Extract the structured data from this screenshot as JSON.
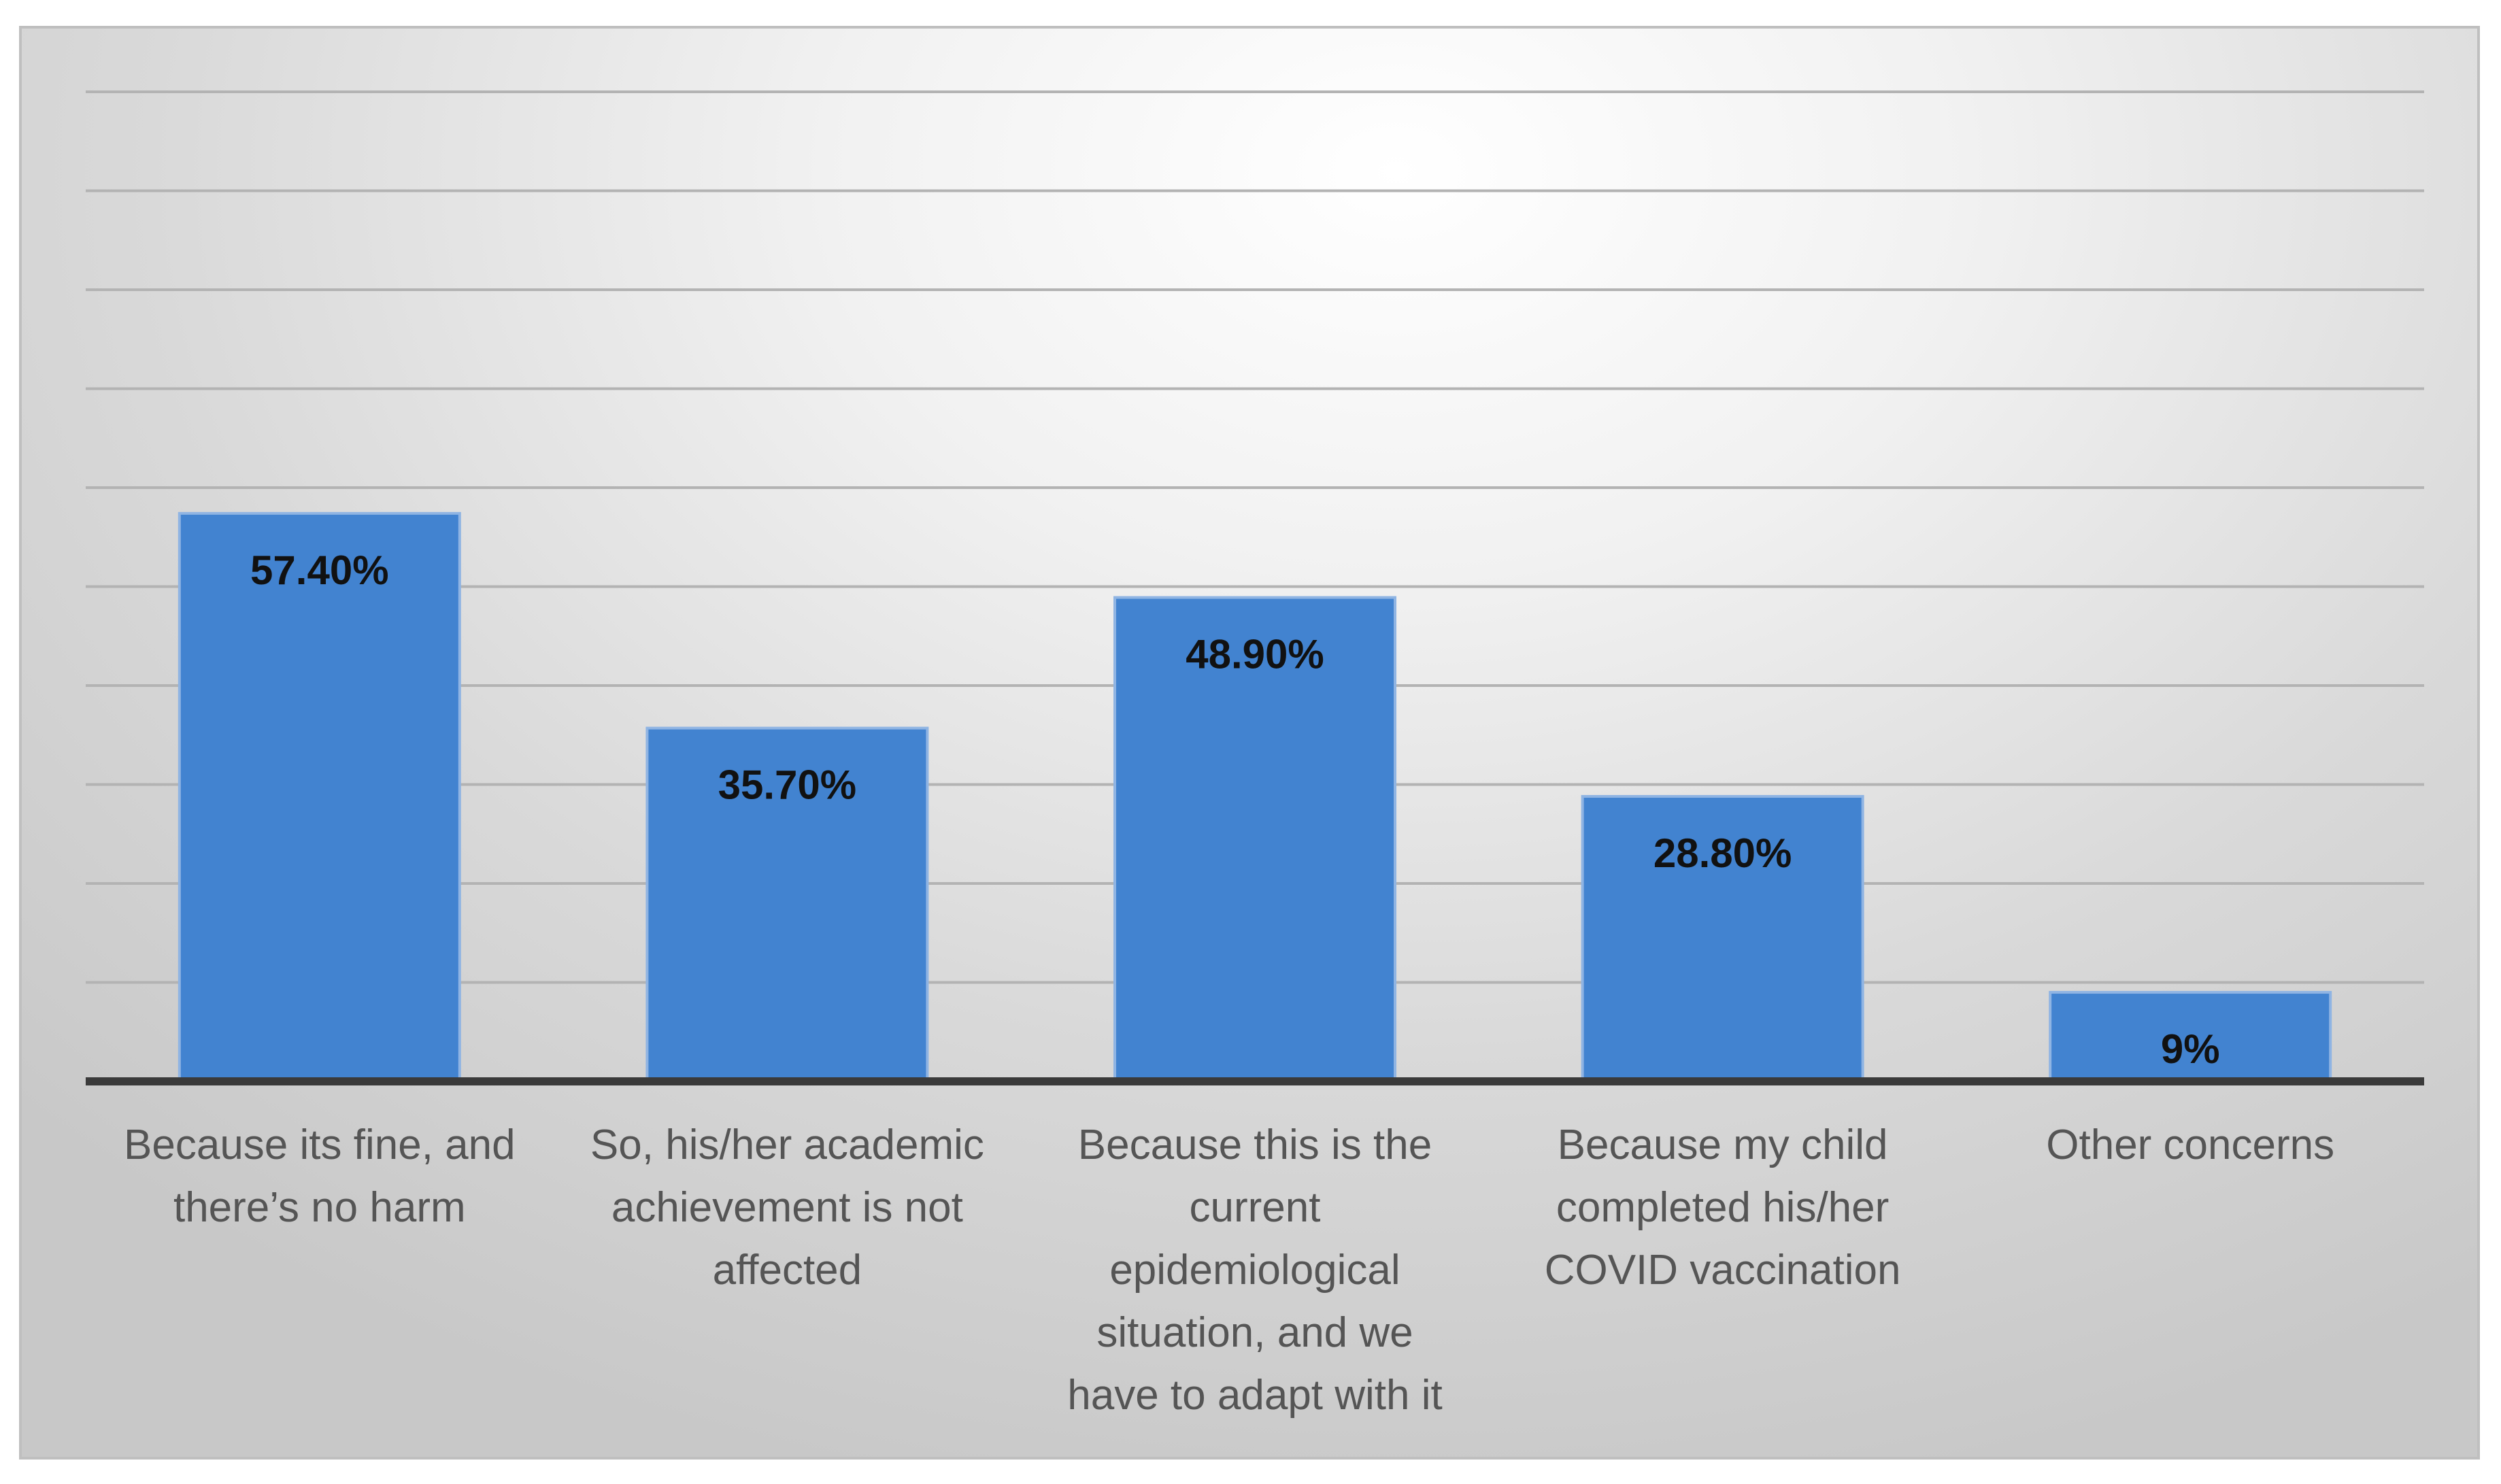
{
  "chart_data": {
    "type": "bar",
    "categories": [
      [
        "Because its fine, and",
        "there’s no harm"
      ],
      [
        "So, his/her academic",
        "achievement is not",
        "affected"
      ],
      [
        "Because this is the",
        "current",
        "epidemiological",
        "situation, and we",
        "have to adapt with it"
      ],
      [
        "Because my child",
        "completed his/her",
        "COVID vaccination"
      ],
      [
        "Other concerns"
      ]
    ],
    "values": [
      57.4,
      35.7,
      48.9,
      28.8,
      9
    ],
    "data_labels": [
      "57.40%",
      "35.70%",
      "48.90%",
      "28.80%",
      "9%"
    ],
    "ylim": [
      0,
      100
    ],
    "y_gridline_step": 10,
    "y_tick_labels_shown": false,
    "grid": true,
    "legend": "none",
    "colors": {
      "bar": "#4283d0",
      "bar_edge": "#8fb4e3",
      "gridline": "#b3b3b3",
      "axis": "#3a3a3a"
    }
  }
}
